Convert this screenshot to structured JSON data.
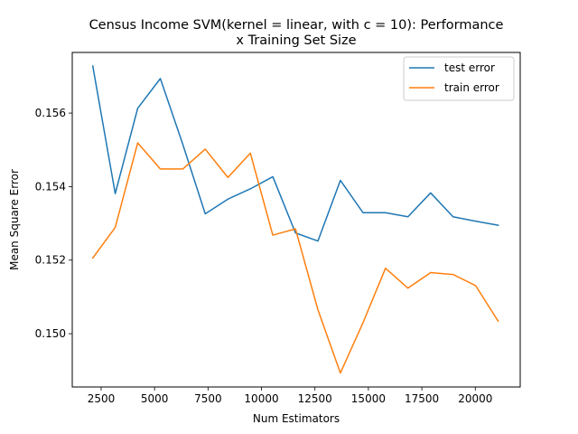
{
  "chart_data": {
    "type": "line",
    "title_lines": [
      "Census Income SVM(kernel = linear, with c = 10): Performance",
      "x Training Set Size"
    ],
    "xlabel": "Num Estimators",
    "ylabel": "Mean Square Error",
    "xlim": [
      1150,
      22100
    ],
    "ylim": [
      0.14855,
      0.15765
    ],
    "xticks": [
      2500,
      5000,
      7500,
      10000,
      12500,
      15000,
      17500,
      20000
    ],
    "xtick_labels": [
      "2500",
      "5000",
      "7500",
      "10000",
      "12500",
      "15000",
      "17500",
      "20000"
    ],
    "yticks": [
      0.15,
      0.152,
      0.154,
      0.156
    ],
    "ytick_labels": [
      "0.150",
      "0.152",
      "0.154",
      "0.156"
    ],
    "legend_position": "top-right",
    "x": [
      2110,
      3160,
      4210,
      5270,
      6320,
      7370,
      8430,
      9480,
      10530,
      11590,
      12640,
      13690,
      14750,
      15800,
      16850,
      17910,
      18960,
      20010,
      21070
    ],
    "series": [
      {
        "name": "test error",
        "color": "#1f77b4",
        "values": [
          0.15728,
          0.15381,
          0.15613,
          0.15694,
          0.15515,
          0.15326,
          0.15366,
          0.15394,
          0.15427,
          0.15274,
          0.15252,
          0.15417,
          0.15329,
          0.15329,
          0.15318,
          0.15383,
          0.15318,
          0.15306,
          0.15295
        ]
      },
      {
        "name": "train error",
        "color": "#ff7f0e",
        "values": [
          0.15206,
          0.15289,
          0.15519,
          0.15448,
          0.15448,
          0.15502,
          0.15425,
          0.15491,
          0.15268,
          0.15285,
          0.15065,
          0.14893,
          0.1503,
          0.15178,
          0.15124,
          0.15166,
          0.15161,
          0.15131,
          0.15034
        ]
      }
    ]
  }
}
